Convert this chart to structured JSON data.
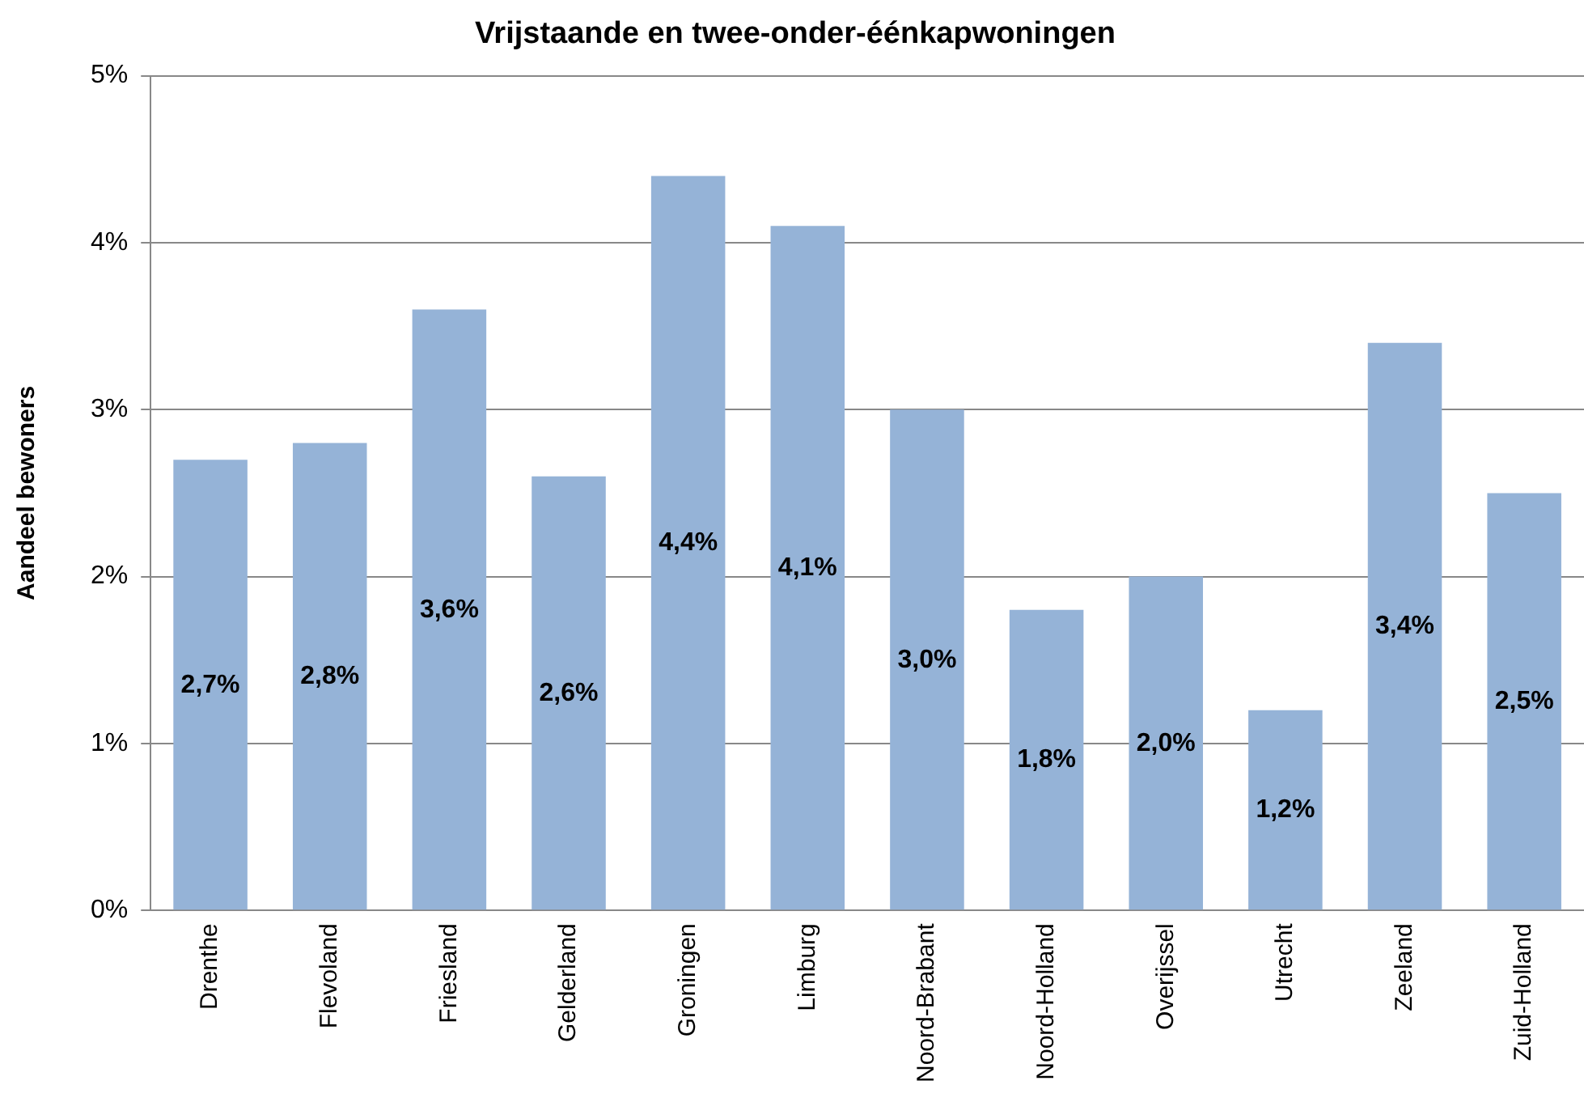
{
  "chart_data": {
    "type": "bar",
    "title": "Vrijstaande en twee-onder-éénkapwoningen",
    "ylabel": "Aandeel bewoners",
    "categories": [
      "Drenthe",
      "Flevoland",
      "Friesland",
      "Gelderland",
      "Groningen",
      "Limburg",
      "Noord-Brabant",
      "Noord-Holland",
      "Overijssel",
      "Utrecht",
      "Zeeland",
      "Zuid-Holland"
    ],
    "values": [
      2.7,
      2.8,
      3.6,
      2.6,
      4.4,
      4.1,
      3.0,
      1.8,
      2.0,
      1.2,
      3.4,
      2.5
    ],
    "value_labels": [
      "2,7%",
      "2,8%",
      "3,6%",
      "2,6%",
      "4,4%",
      "4,1%",
      "3,0%",
      "1,8%",
      "2,0%",
      "1,2%",
      "3,4%",
      "2,5%"
    ],
    "color": "#95b3d7",
    "ylim": [
      0,
      5
    ],
    "yticks": [
      {
        "value": 0,
        "label": "0%"
      },
      {
        "value": 1,
        "label": "1%"
      },
      {
        "value": 2,
        "label": "2%"
      },
      {
        "value": 3,
        "label": "3%"
      },
      {
        "value": 4,
        "label": "4%"
      },
      {
        "value": 5,
        "label": "5%"
      }
    ],
    "grid": "y",
    "legend": false
  }
}
